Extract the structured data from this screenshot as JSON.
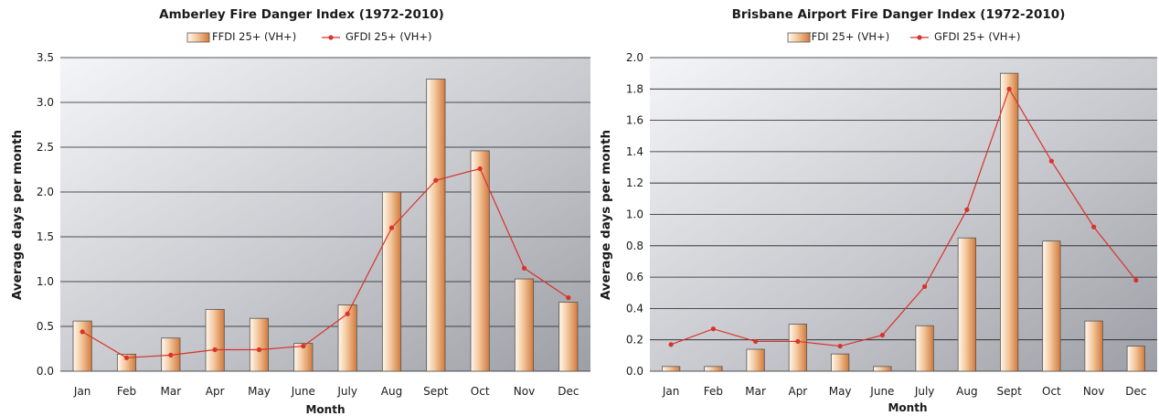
{
  "colors": {
    "ffdi_bar_dark": "#d27a3c",
    "ffdi_bar_light": "#fff8f0",
    "gfdi_line": "#d9322a",
    "plot_bg_light": "#f4f5f8",
    "plot_bg_dark": "#9d9fa6",
    "gridline": "#1f1f1f"
  },
  "chart_data": [
    {
      "type": "bar",
      "title": "Amberley Fire Danger Index (1972-2010)",
      "xlabel": "Month",
      "ylabel": "Average days per month",
      "ylim": [
        0,
        3.5
      ],
      "yticks": [
        0.0,
        0.5,
        1.0,
        1.5,
        2.0,
        2.5,
        3.0,
        3.5
      ],
      "ytick_labels": [
        "0.0",
        "0.5",
        "1.0",
        "1.5",
        "2.0",
        "2.5",
        "3.0",
        "3.5"
      ],
      "grid": true,
      "legend_position": "top-center",
      "categories": [
        "Jan",
        "Feb",
        "Mar",
        "Apr",
        "May",
        "June",
        "July",
        "Aug",
        "Sept",
        "Oct",
        "Nov",
        "Dec"
      ],
      "series": [
        {
          "name": "FFDI  25+ (VH+)",
          "type": "bar",
          "values": [
            0.56,
            0.19,
            0.37,
            0.69,
            0.59,
            0.31,
            0.74,
            2.0,
            3.26,
            2.46,
            1.03,
            0.77
          ]
        },
        {
          "name": "GFDI  25+ (VH+)",
          "type": "line",
          "values": [
            0.44,
            0.15,
            0.18,
            0.24,
            0.24,
            0.28,
            0.64,
            1.6,
            2.13,
            2.26,
            1.15,
            0.82
          ]
        }
      ]
    },
    {
      "type": "bar",
      "title": "Brisbane Airport Fire Danger Index (1972-2010)",
      "xlabel": "Month",
      "ylabel": "Average days per month",
      "ylim": [
        0,
        2.0
      ],
      "yticks": [
        0.0,
        0.2,
        0.4,
        0.6,
        0.8,
        1.0,
        1.2,
        1.4,
        1.6,
        1.8,
        2.0
      ],
      "ytick_labels": [
        "0.0",
        "0.2",
        "0.4",
        "0.6",
        "0.8",
        "1.0",
        "1.2",
        "1.4",
        "1.6",
        "1.8",
        "2.0"
      ],
      "grid": true,
      "legend_position": "top-center",
      "categories": [
        "Jan",
        "Feb",
        "Mar",
        "Apr",
        "May",
        "June",
        "July",
        "Aug",
        "Sept",
        "Oct",
        "Nov",
        "Dec"
      ],
      "series": [
        {
          "name": "FFDI 25+ (VH+)",
          "type": "bar",
          "values": [
            0.03,
            0.03,
            0.14,
            0.3,
            0.11,
            0.03,
            0.29,
            0.85,
            1.9,
            0.83,
            0.32,
            0.16
          ]
        },
        {
          "name": "GFDI 25+ (VH+)",
          "type": "line",
          "values": [
            0.17,
            0.27,
            0.19,
            0.19,
            0.16,
            0.23,
            0.54,
            1.03,
            1.8,
            1.34,
            0.92,
            0.58
          ]
        }
      ]
    }
  ]
}
